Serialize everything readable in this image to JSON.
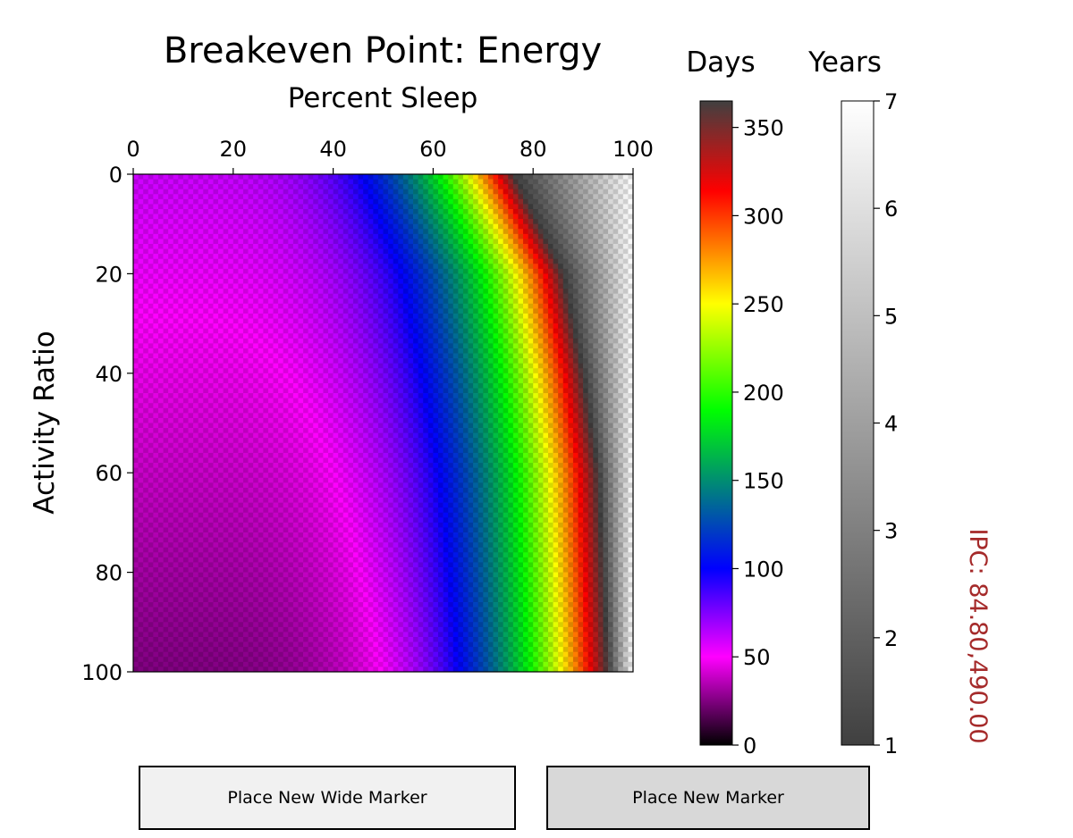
{
  "chart_data": {
    "type": "heatmap",
    "title": "Breakeven Point: Energy",
    "xlabel": "Percent Sleep",
    "ylabel": "Activity Ratio",
    "x_ticks": [
      "0",
      "20",
      "40",
      "60",
      "80",
      "100"
    ],
    "y_ticks": [
      "0",
      "20",
      "40",
      "60",
      "80",
      "100"
    ],
    "xlim": [
      0,
      100
    ],
    "ylim": [
      0,
      100
    ],
    "x_axis_position": "top",
    "y_axis_inverted": true,
    "grid": false,
    "colorbars": [
      {
        "label": "Days",
        "range": [
          0,
          365
        ],
        "ticks": [
          "0",
          "50",
          "100",
          "150",
          "200",
          "250",
          "300",
          "350"
        ],
        "tick_values": [
          0,
          50,
          100,
          150,
          200,
          250,
          300,
          350
        ],
        "colormap": [
          "#000000",
          "#ff00ff",
          "#0000ff",
          "#00ff00",
          "#ffff00",
          "#ff0000",
          "#404040"
        ]
      },
      {
        "label": "Years",
        "range": [
          1,
          7
        ],
        "ticks": [
          "1",
          "2",
          "3",
          "4",
          "5",
          "6",
          "7"
        ],
        "tick_values": [
          1,
          2,
          3,
          4,
          5,
          6,
          7
        ],
        "colormap": [
          "#404040",
          "#ffffff"
        ]
      }
    ],
    "boundary_sleep_percent_by_activity_ratio": {
      "activity_ratio": [
        0,
        20,
        40,
        60,
        80,
        100
      ],
      "percent_sleep": [
        76,
        86,
        90,
        93,
        94,
        95
      ]
    },
    "annotation": {
      "text": "IPC: 84.80,490.00",
      "color": "#a52a2a"
    }
  },
  "buttons": {
    "wide_marker_label": "Place New Wide Marker",
    "marker_label": "Place New Marker"
  }
}
